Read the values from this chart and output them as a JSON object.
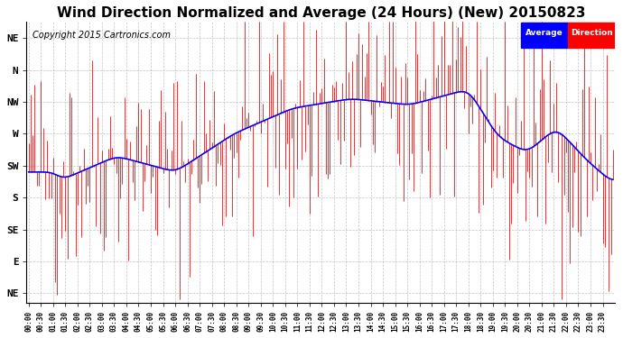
{
  "title": "Wind Direction Normalized and Average (24 Hours) (New) 20150823",
  "copyright": "Copyright 2015 Cartronics.com",
  "ytick_labels": [
    "NE",
    "N",
    "NW",
    "W",
    "SW",
    "S",
    "SE",
    "E",
    "NE"
  ],
  "ytick_values": [
    8,
    7,
    6,
    5,
    4,
    3,
    2,
    1,
    0
  ],
  "legend_avg_color": "#0000ff",
  "legend_dir_color": "#ff0000",
  "legend_avg_bg": "#0000ff",
  "legend_dir_bg": "#ff0000",
  "bar_color": "#ff0000",
  "avg_color": "#0000ff",
  "grid_color": "#aaaaaa",
  "background_color": "#ffffff",
  "title_fontsize": 11,
  "copyright_fontsize": 7
}
